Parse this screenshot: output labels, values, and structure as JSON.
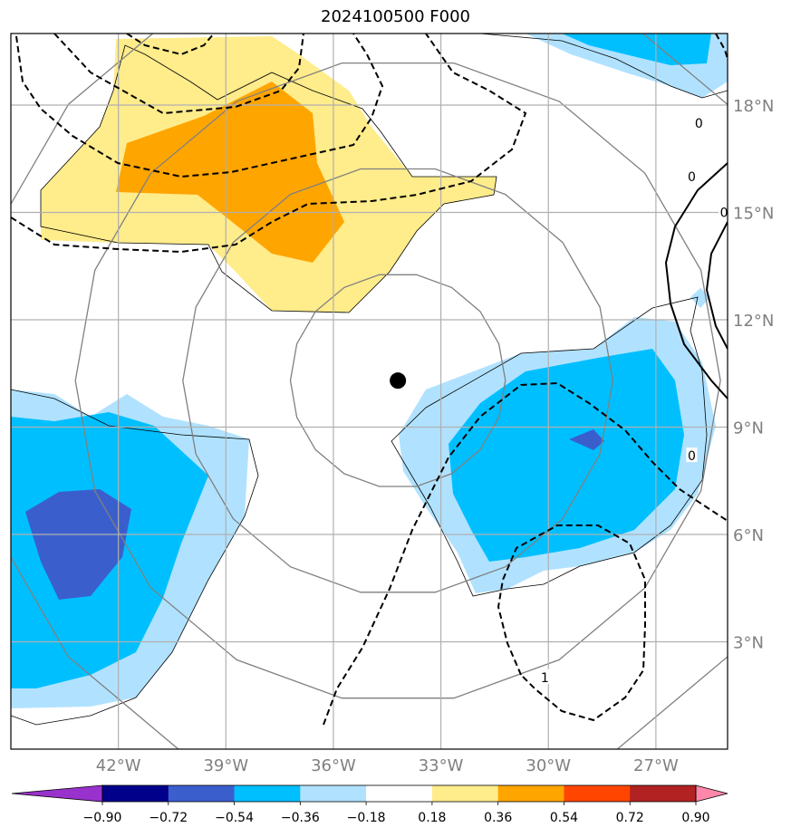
{
  "chart_data": {
    "type": "heatmap",
    "title": "2024100500 F000",
    "map_extent": {
      "lon_min": -45,
      "lon_max": -25,
      "lat_min": 0,
      "lat_max": 20
    },
    "grid": true,
    "x_ticks": [
      {
        "value": -42,
        "label": "42°W"
      },
      {
        "value": -39,
        "label": "39°W"
      },
      {
        "value": -36,
        "label": "36°W"
      },
      {
        "value": -33,
        "label": "33°W"
      },
      {
        "value": -30,
        "label": "30°W"
      },
      {
        "value": -27,
        "label": "27°W"
      }
    ],
    "y_ticks": [
      {
        "value": 3,
        "label": "3°N"
      },
      {
        "value": 6,
        "label": "6°N"
      },
      {
        "value": 9,
        "label": "9°N"
      },
      {
        "value": 12,
        "label": "12°N"
      },
      {
        "value": 15,
        "label": "15°N"
      },
      {
        "value": 18,
        "label": "18°N"
      }
    ],
    "center_marker": {
      "lon": -34.2,
      "lat": 10.3
    },
    "range_rings_deg": [
      3,
      6,
      9,
      12
    ],
    "colorbar": {
      "boundaries": [
        -0.9,
        -0.72,
        -0.54,
        -0.36,
        -0.18,
        0.18,
        0.36,
        0.54,
        0.72,
        0.9
      ],
      "labels": [
        "−0.90",
        "−0.72",
        "−0.54",
        "−0.36",
        "−0.18",
        "0.18",
        "0.36",
        "0.54",
        "0.72",
        "0.90"
      ],
      "colors": [
        "#9932cc",
        "#00008b",
        "#3a5fcd",
        "#00bfff",
        "#b0e2ff",
        "#ffffff",
        "#ffec8b",
        "#ffa500",
        "#ff4500",
        "#b22222",
        "#ff88aa"
      ],
      "extend": "both"
    },
    "contour_labels": [
      {
        "text": "0",
        "lon": -26.0,
        "lat": 16.0
      },
      {
        "text": "0",
        "lon": -25.1,
        "lat": 15.0
      },
      {
        "text": "0",
        "lon": -26.0,
        "lat": 8.2
      },
      {
        "text": "0",
        "lon": -25.8,
        "lat": 17.5
      },
      {
        "text": "1",
        "lon": -30.1,
        "lat": 2.0
      }
    ]
  }
}
